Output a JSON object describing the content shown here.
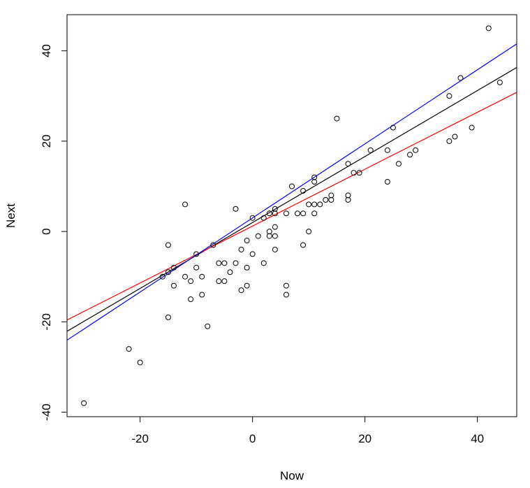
{
  "chart_data": {
    "type": "scatter",
    "title": "",
    "xlabel": "Now",
    "ylabel": "Next",
    "xlim": [
      -33,
      47
    ],
    "ylim": [
      -41,
      48
    ],
    "x_ticks": [
      -20,
      0,
      20,
      40
    ],
    "y_ticks": [
      -40,
      -20,
      0,
      20,
      40
    ],
    "x_tick_labels": [
      "-20",
      "0",
      "20",
      "40"
    ],
    "y_tick_labels": [
      "-40",
      "-20",
      "0",
      "20",
      "40"
    ],
    "grid": false,
    "legend": "none",
    "points": [
      {
        "x": -30,
        "y": -38
      },
      {
        "x": -22,
        "y": -26
      },
      {
        "x": -20,
        "y": -29
      },
      {
        "x": -16,
        "y": -10
      },
      {
        "x": -15,
        "y": -19
      },
      {
        "x": -15,
        "y": -9
      },
      {
        "x": -15,
        "y": -3
      },
      {
        "x": -14,
        "y": -8
      },
      {
        "x": -14,
        "y": -12
      },
      {
        "x": -12,
        "y": 6
      },
      {
        "x": -12,
        "y": -10
      },
      {
        "x": -11,
        "y": -11
      },
      {
        "x": -11,
        "y": -15
      },
      {
        "x": -10,
        "y": -5
      },
      {
        "x": -10,
        "y": -8
      },
      {
        "x": -9,
        "y": -10
      },
      {
        "x": -9,
        "y": -14
      },
      {
        "x": -8,
        "y": -21
      },
      {
        "x": -7,
        "y": -3
      },
      {
        "x": -6,
        "y": -7
      },
      {
        "x": -6,
        "y": -11
      },
      {
        "x": -5,
        "y": -7
      },
      {
        "x": -5,
        "y": -11
      },
      {
        "x": -4,
        "y": -9
      },
      {
        "x": -3,
        "y": 5
      },
      {
        "x": -3,
        "y": -7
      },
      {
        "x": -2,
        "y": -4
      },
      {
        "x": -2,
        "y": -13
      },
      {
        "x": -1,
        "y": -2
      },
      {
        "x": -1,
        "y": -8
      },
      {
        "x": -1,
        "y": -12
      },
      {
        "x": 0,
        "y": 3
      },
      {
        "x": 0,
        "y": -5
      },
      {
        "x": 1,
        "y": -1
      },
      {
        "x": 2,
        "y": 3
      },
      {
        "x": 2,
        "y": -7
      },
      {
        "x": 3,
        "y": 4
      },
      {
        "x": 3,
        "y": 0
      },
      {
        "x": 3,
        "y": -1
      },
      {
        "x": 4,
        "y": 5
      },
      {
        "x": 4,
        "y": 4
      },
      {
        "x": 4,
        "y": 1
      },
      {
        "x": 4,
        "y": -1
      },
      {
        "x": 4,
        "y": -4
      },
      {
        "x": 6,
        "y": 4
      },
      {
        "x": 6,
        "y": -12
      },
      {
        "x": 6,
        "y": -14
      },
      {
        "x": 7,
        "y": 10
      },
      {
        "x": 8,
        "y": 4
      },
      {
        "x": 9,
        "y": 9
      },
      {
        "x": 9,
        "y": 4
      },
      {
        "x": 9,
        "y": -3
      },
      {
        "x": 10,
        "y": 6
      },
      {
        "x": 10,
        "y": 0
      },
      {
        "x": 11,
        "y": 12
      },
      {
        "x": 11,
        "y": 11
      },
      {
        "x": 11,
        "y": 6
      },
      {
        "x": 11,
        "y": 4
      },
      {
        "x": 12,
        "y": 6
      },
      {
        "x": 13,
        "y": 7
      },
      {
        "x": 14,
        "y": 8
      },
      {
        "x": 14,
        "y": 7
      },
      {
        "x": 15,
        "y": 25
      },
      {
        "x": 17,
        "y": 15
      },
      {
        "x": 17,
        "y": 8
      },
      {
        "x": 17,
        "y": 7
      },
      {
        "x": 18,
        "y": 13
      },
      {
        "x": 19,
        "y": 13
      },
      {
        "x": 21,
        "y": 18
      },
      {
        "x": 24,
        "y": 18
      },
      {
        "x": 24,
        "y": 11
      },
      {
        "x": 25,
        "y": 23
      },
      {
        "x": 26,
        "y": 15
      },
      {
        "x": 28,
        "y": 17
      },
      {
        "x": 29,
        "y": 18
      },
      {
        "x": 35,
        "y": 30
      },
      {
        "x": 35,
        "y": 20
      },
      {
        "x": 36,
        "y": 21
      },
      {
        "x": 37,
        "y": 34
      },
      {
        "x": 39,
        "y": 23
      },
      {
        "x": 42,
        "y": 45
      },
      {
        "x": 44,
        "y": 33
      }
    ],
    "lines": [
      {
        "color": "#000000",
        "intercept": 2.0,
        "slope": 0.73
      },
      {
        "color": "#ff0000",
        "intercept": 1.2,
        "slope": 0.63
      },
      {
        "color": "#0000ff",
        "intercept": 3.0,
        "slope": 0.82
      }
    ]
  }
}
